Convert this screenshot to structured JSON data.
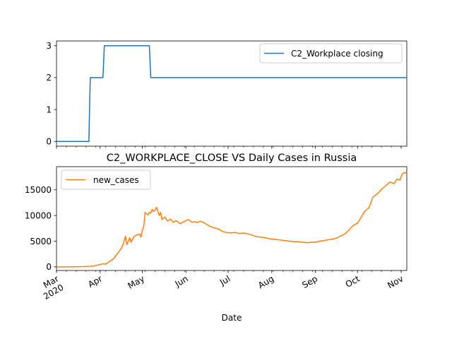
{
  "chart_data": [
    {
      "type": "line",
      "title": "",
      "xlabel": "",
      "ylabel": "",
      "ylim": [
        -0.15,
        3.15
      ],
      "yticks": [
        0,
        1,
        2,
        3
      ],
      "legend": {
        "placement": "upper right",
        "entries": [
          "C2_Workplace closing"
        ]
      },
      "series": [
        {
          "name": "C2_Workplace closing",
          "color": "#1f77b4",
          "step_points": [
            [
              "2020-03-01",
              0
            ],
            [
              "2020-03-24",
              0
            ],
            [
              "2020-03-25",
              2
            ],
            [
              "2020-04-03",
              2
            ],
            [
              "2020-04-04",
              3
            ],
            [
              "2020-05-06",
              3
            ],
            [
              "2020-05-07",
              2
            ],
            [
              "2020-11-05",
              2
            ]
          ]
        }
      ]
    },
    {
      "type": "line",
      "title": "C2_WORKPLACE_CLOSE VS Daily Cases in Russia",
      "xlabel": "Date",
      "ylabel": "",
      "ylim": [
        -700,
        19500
      ],
      "yticks": [
        0,
        5000,
        10000,
        15000
      ],
      "xlim": [
        "2020-03-01",
        "2020-11-05"
      ],
      "xticks": [
        {
          "date": "2020-03-01",
          "month": "Mar",
          "year": "2020"
        },
        {
          "date": "2020-04-01",
          "month": "Apr",
          "year": ""
        },
        {
          "date": "2020-05-01",
          "month": "May",
          "year": ""
        },
        {
          "date": "2020-06-01",
          "month": "Jun",
          "year": ""
        },
        {
          "date": "2020-07-01",
          "month": "Jul",
          "year": ""
        },
        {
          "date": "2020-08-01",
          "month": "Aug",
          "year": ""
        },
        {
          "date": "2020-09-01",
          "month": "Sep",
          "year": ""
        },
        {
          "date": "2020-10-01",
          "month": "Oct",
          "year": ""
        },
        {
          "date": "2020-11-01",
          "month": "Nov",
          "year": ""
        }
      ],
      "legend": {
        "placement": "upper left",
        "entries": [
          "new_cases"
        ]
      },
      "series": [
        {
          "name": "new_cases",
          "color": "#ff7f0e",
          "points": [
            [
              "2020-03-01",
              0
            ],
            [
              "2020-03-10",
              3
            ],
            [
              "2020-03-20",
              50
            ],
            [
              "2020-03-25",
              100
            ],
            [
              "2020-03-28",
              200
            ],
            [
              "2020-03-31",
              400
            ],
            [
              "2020-04-03",
              600
            ],
            [
              "2020-04-05",
              550
            ],
            [
              "2020-04-08",
              1100
            ],
            [
              "2020-04-11",
              1700
            ],
            [
              "2020-04-13",
              2500
            ],
            [
              "2020-04-15",
              3200
            ],
            [
              "2020-04-17",
              4100
            ],
            [
              "2020-04-19",
              6000
            ],
            [
              "2020-04-20",
              4300
            ],
            [
              "2020-04-22",
              5700
            ],
            [
              "2020-04-23",
              4800
            ],
            [
              "2020-04-25",
              5900
            ],
            [
              "2020-04-27",
              6200
            ],
            [
              "2020-04-29",
              6400
            ],
            [
              "2020-04-30",
              5800
            ],
            [
              "2020-05-01",
              7100
            ],
            [
              "2020-05-02",
              7900
            ],
            [
              "2020-05-03",
              10600
            ],
            [
              "2020-05-05",
              10100
            ],
            [
              "2020-05-06",
              10600
            ],
            [
              "2020-05-07",
              10500
            ],
            [
              "2020-05-08",
              11200
            ],
            [
              "2020-05-09",
              10800
            ],
            [
              "2020-05-10",
              11000
            ],
            [
              "2020-05-11",
              11600
            ],
            [
              "2020-05-12",
              10900
            ],
            [
              "2020-05-13",
              10000
            ],
            [
              "2020-05-14",
              10600
            ],
            [
              "2020-05-15",
              9200
            ],
            [
              "2020-05-17",
              9700
            ],
            [
              "2020-05-19",
              8900
            ],
            [
              "2020-05-21",
              9300
            ],
            [
              "2020-05-23",
              8700
            ],
            [
              "2020-05-25",
              9000
            ],
            [
              "2020-05-28",
              8400
            ],
            [
              "2020-05-31",
              8900
            ],
            [
              "2020-06-03",
              9200
            ],
            [
              "2020-06-05",
              8700
            ],
            [
              "2020-06-07",
              8800
            ],
            [
              "2020-06-09",
              8600
            ],
            [
              "2020-06-11",
              8900
            ],
            [
              "2020-06-13",
              8700
            ],
            [
              "2020-06-15",
              8400
            ],
            [
              "2020-06-18",
              7900
            ],
            [
              "2020-06-21",
              7600
            ],
            [
              "2020-06-24",
              7400
            ],
            [
              "2020-06-27",
              6900
            ],
            [
              "2020-06-30",
              6700
            ],
            [
              "2020-07-03",
              6600
            ],
            [
              "2020-07-06",
              6700
            ],
            [
              "2020-07-09",
              6500
            ],
            [
              "2020-07-12",
              6600
            ],
            [
              "2020-07-15",
              6400
            ],
            [
              "2020-07-18",
              6200
            ],
            [
              "2020-07-21",
              5900
            ],
            [
              "2020-07-24",
              5800
            ],
            [
              "2020-07-27",
              5700
            ],
            [
              "2020-07-30",
              5500
            ],
            [
              "2020-08-02",
              5400
            ],
            [
              "2020-08-05",
              5300
            ],
            [
              "2020-08-08",
              5200
            ],
            [
              "2020-08-11",
              5100
            ],
            [
              "2020-08-14",
              5000
            ],
            [
              "2020-08-17",
              4900
            ],
            [
              "2020-08-20",
              4900
            ],
            [
              "2020-08-23",
              4800
            ],
            [
              "2020-08-26",
              4700
            ],
            [
              "2020-08-29",
              4800
            ],
            [
              "2020-09-01",
              4800
            ],
            [
              "2020-09-04",
              5000
            ],
            [
              "2020-09-07",
              5100
            ],
            [
              "2020-09-10",
              5300
            ],
            [
              "2020-09-13",
              5400
            ],
            [
              "2020-09-16",
              5600
            ],
            [
              "2020-09-19",
              6000
            ],
            [
              "2020-09-22",
              6400
            ],
            [
              "2020-09-25",
              7200
            ],
            [
              "2020-09-28",
              8100
            ],
            [
              "2020-10-01",
              8500
            ],
            [
              "2020-10-03",
              9400
            ],
            [
              "2020-10-06",
              10800
            ],
            [
              "2020-10-09",
              11500
            ],
            [
              "2020-10-12",
              13600
            ],
            [
              "2020-10-15",
              14200
            ],
            [
              "2020-10-18",
              15100
            ],
            [
              "2020-10-21",
              15800
            ],
            [
              "2020-10-24",
              16500
            ],
            [
              "2020-10-27",
              16200
            ],
            [
              "2020-10-29",
              17100
            ],
            [
              "2020-10-31",
              16900
            ],
            [
              "2020-11-02",
              18200
            ],
            [
              "2020-11-05",
              18400
            ]
          ]
        }
      ]
    }
  ]
}
